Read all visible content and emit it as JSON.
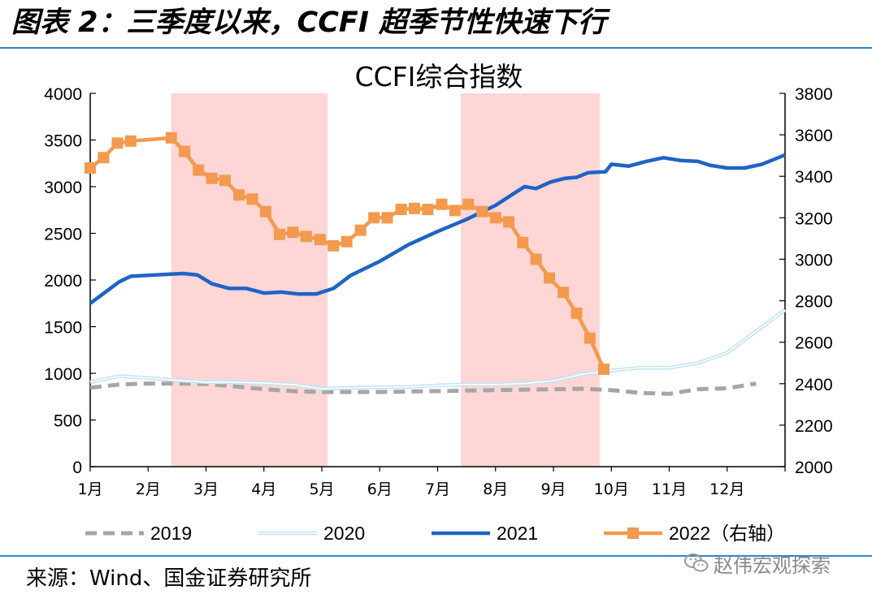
{
  "page": {
    "figure_title": "图表 2：三季度以来，CCFI 超季节性快速下行",
    "source": "来源：Wind、国金证券研究所",
    "watermark": "赵伟宏观探索"
  },
  "colors": {
    "rule": "#2e87c8",
    "s2019": "#a6a6a6",
    "s2020": "#bfe3f5",
    "s2021": "#1f63c6",
    "s2022": "#f39a4e",
    "shade": "#ffd6d6"
  },
  "chart_data": {
    "type": "line",
    "title": "CCFI综合指数",
    "x_range": [
      0,
      12
    ],
    "x_tick_labels": [
      "1月",
      "2月",
      "3月",
      "4月",
      "5月",
      "6月",
      "7月",
      "8月",
      "9月",
      "10月",
      "11月",
      "12月"
    ],
    "y_left": {
      "range": [
        0,
        4000
      ],
      "ticks": [
        "0",
        "500",
        "1000",
        "1500",
        "2000",
        "2500",
        "3000",
        "3500",
        "4000"
      ]
    },
    "y_right": {
      "range": [
        2000,
        3800
      ],
      "ticks": [
        "2000",
        "2200",
        "2400",
        "2600",
        "2800",
        "3000",
        "3200",
        "3400",
        "3600",
        "3800"
      ]
    },
    "shaded_ranges": [
      [
        1.4,
        4.1
      ],
      [
        6.4,
        8.8
      ]
    ],
    "legend_position": "bottom",
    "series": [
      {
        "name": "2019",
        "axis": "left",
        "style": "dashed",
        "x": [
          0,
          0.5,
          1,
          1.5,
          2,
          2.5,
          3,
          3.5,
          4,
          4.5,
          5,
          5.5,
          6,
          6.5,
          7,
          7.5,
          8,
          8.5,
          9,
          9.5,
          10,
          10.5,
          11,
          11.5
        ],
        "y": [
          845,
          880,
          890,
          890,
          885,
          860,
          830,
          810,
          800,
          800,
          800,
          805,
          810,
          815,
          820,
          825,
          830,
          835,
          820,
          790,
          780,
          830,
          840,
          890
        ]
      },
      {
        "name": "2020",
        "axis": "left",
        "style": "double",
        "x": [
          0,
          0.5,
          1,
          1.5,
          2,
          2.5,
          3,
          3.5,
          4,
          4.5,
          5,
          5.5,
          6,
          6.5,
          7,
          7.5,
          8,
          8.5,
          9,
          9.5,
          10,
          10.5,
          11,
          11.5,
          12
        ],
        "y": [
          905,
          970,
          950,
          925,
          905,
          905,
          895,
          880,
          835,
          845,
          850,
          855,
          870,
          880,
          880,
          890,
          920,
          990,
          1030,
          1060,
          1060,
          1110,
          1220,
          1450,
          1680
        ]
      },
      {
        "name": "2021",
        "axis": "left",
        "style": "solid",
        "x": [
          0,
          0.5,
          0.7,
          1,
          1.3,
          1.6,
          1.85,
          2.1,
          2.4,
          2.7,
          3.0,
          3.3,
          3.6,
          3.9,
          4.2,
          4.5,
          5,
          5.5,
          6,
          6.5,
          7,
          7.3,
          7.5,
          7.7,
          7.95,
          8.2,
          8.4,
          8.6,
          8.9,
          9.0,
          9.3,
          9.6,
          9.9,
          10.2,
          10.5,
          10.7,
          11,
          11.3,
          11.6,
          12
        ],
        "y": [
          1750,
          1980,
          2040,
          2050,
          2060,
          2070,
          2055,
          1960,
          1910,
          1910,
          1860,
          1870,
          1850,
          1850,
          1910,
          2050,
          2200,
          2380,
          2520,
          2650,
          2800,
          2920,
          3000,
          2980,
          3050,
          3090,
          3100,
          3150,
          3160,
          3240,
          3220,
          3270,
          3310,
          3280,
          3270,
          3230,
          3200,
          3200,
          3240,
          3340
        ]
      },
      {
        "name": "2022（右轴）",
        "axis": "right",
        "style": "marker",
        "x": [
          0.0,
          0.23,
          0.47,
          0.7,
          1.4,
          1.63,
          1.87,
          2.1,
          2.33,
          2.57,
          2.8,
          3.03,
          3.27,
          3.5,
          3.73,
          3.97,
          4.2,
          4.43,
          4.67,
          4.9,
          5.13,
          5.37,
          5.6,
          5.83,
          6.07,
          6.3,
          6.53,
          6.77,
          7.0,
          7.23,
          7.47,
          7.7,
          7.93,
          8.17,
          8.4,
          8.63,
          8.87
        ],
        "y": [
          3440,
          3490,
          3560,
          3570,
          3585,
          3520,
          3430,
          3390,
          3380,
          3310,
          3290,
          3230,
          3120,
          3130,
          3110,
          3095,
          3065,
          3085,
          3140,
          3200,
          3200,
          3240,
          3245,
          3240,
          3265,
          3235,
          3265,
          3230,
          3200,
          3180,
          3080,
          3000,
          2910,
          2840,
          2740,
          2620,
          2470
        ]
      }
    ]
  }
}
